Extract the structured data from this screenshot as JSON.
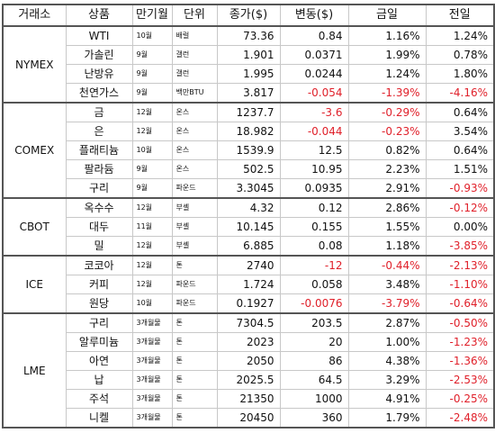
{
  "columns": [
    "거래소",
    "상품",
    "만기월",
    "단위",
    "종가($)",
    "변동($)",
    "금일",
    "전일"
  ],
  "groups": [
    {
      "exchange": "NYMEX",
      "rows": [
        {
          "item": "WTI",
          "month": "10월",
          "unit": "배럴",
          "close": "73.36",
          "change": "0.84",
          "today": "1.16%",
          "prev": "1.24%"
        },
        {
          "item": "가솔린",
          "month": "9월",
          "unit": "갤런",
          "close": "1.901",
          "change": "0.0371",
          "today": "1.99%",
          "prev": "0.78%"
        },
        {
          "item": "난방유",
          "month": "9월",
          "unit": "갤런",
          "close": "1.995",
          "change": "0.0244",
          "today": "1.24%",
          "prev": "1.80%"
        },
        {
          "item": "천연가스",
          "month": "9월",
          "unit": "백만BTU",
          "close": "3.817",
          "change": "-0.054",
          "today": "-1.39%",
          "prev": "-4.16%"
        }
      ]
    },
    {
      "exchange": "COMEX",
      "rows": [
        {
          "item": "금",
          "month": "12월",
          "unit": "온스",
          "close": "1237.7",
          "change": "-3.6",
          "today": "-0.29%",
          "prev": "0.64%"
        },
        {
          "item": "은",
          "month": "12월",
          "unit": "온스",
          "close": "18.982",
          "change": "-0.044",
          "today": "-0.23%",
          "prev": "3.54%"
        },
        {
          "item": "플래티늄",
          "month": "10월",
          "unit": "온스",
          "close": "1539.9",
          "change": "12.5",
          "today": "0.82%",
          "prev": "0.64%"
        },
        {
          "item": "팔라듐",
          "month": "9월",
          "unit": "온스",
          "close": "502.5",
          "change": "10.95",
          "today": "2.23%",
          "prev": "1.51%"
        },
        {
          "item": "구리",
          "month": "9월",
          "unit": "파운드",
          "close": "3.3045",
          "change": "0.0935",
          "today": "2.91%",
          "prev": "-0.93%"
        }
      ]
    },
    {
      "exchange": "CBOT",
      "rows": [
        {
          "item": "옥수수",
          "month": "12월",
          "unit": "부셸",
          "close": "4.32",
          "change": "0.12",
          "today": "2.86%",
          "prev": "-0.12%"
        },
        {
          "item": "대두",
          "month": "11월",
          "unit": "부셸",
          "close": "10.145",
          "change": "0.155",
          "today": "1.55%",
          "prev": "0.00%"
        },
        {
          "item": "밀",
          "month": "12월",
          "unit": "부셸",
          "close": "6.885",
          "change": "0.08",
          "today": "1.18%",
          "prev": "-3.85%"
        }
      ]
    },
    {
      "exchange": "ICE",
      "rows": [
        {
          "item": "코코아",
          "month": "12월",
          "unit": "톤",
          "close": "2740",
          "change": "-12",
          "today": "-0.44%",
          "prev": "-2.13%"
        },
        {
          "item": "커피",
          "month": "12월",
          "unit": "파운드",
          "close": "1.724",
          "change": "0.058",
          "today": "3.48%",
          "prev": "-1.10%"
        },
        {
          "item": "원당",
          "month": "10월",
          "unit": "파운드",
          "close": "0.1927",
          "change": "-0.0076",
          "today": "-3.79%",
          "prev": "-0.64%"
        }
      ]
    },
    {
      "exchange": "LME",
      "rows": [
        {
          "item": "구리",
          "month": "3개월물",
          "unit": "톤",
          "close": "7304.5",
          "change": "203.5",
          "today": "2.87%",
          "prev": "-0.50%"
        },
        {
          "item": "알루미늄",
          "month": "3개월물",
          "unit": "톤",
          "close": "2023",
          "change": "20",
          "today": "1.00%",
          "prev": "-1.23%"
        },
        {
          "item": "아연",
          "month": "3개월물",
          "unit": "톤",
          "close": "2050",
          "change": "86",
          "today": "4.38%",
          "prev": "-1.36%"
        },
        {
          "item": "납",
          "month": "3개월물",
          "unit": "톤",
          "close": "2025.5",
          "change": "64.5",
          "today": "3.29%",
          "prev": "-2.53%"
        },
        {
          "item": "주석",
          "month": "3개월물",
          "unit": "톤",
          "close": "21350",
          "change": "1000",
          "today": "4.91%",
          "prev": "-0.25%"
        },
        {
          "item": "니켈",
          "month": "3개월물",
          "unit": "톤",
          "close": "20450",
          "change": "360",
          "today": "1.79%",
          "prev": "-2.48%"
        }
      ]
    }
  ]
}
